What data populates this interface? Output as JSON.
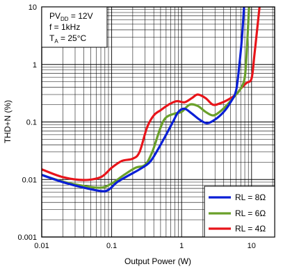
{
  "chart_data": {
    "type": "line",
    "title": "",
    "xlabel": "Output Power (W)",
    "ylabel": "THD+N (%)",
    "x_scale": "log",
    "y_scale": "log",
    "xlim": [
      0.01,
      20
    ],
    "ylim": [
      0.001,
      10
    ],
    "x_ticks": [
      "0.01",
      "0.1",
      "1",
      "10"
    ],
    "y_ticks": [
      "0.001",
      "0.01",
      "0.1",
      "1",
      "10"
    ],
    "grid": true,
    "legend_position": "bottom-right",
    "annotations": {
      "line1_main": "PV",
      "line1_sub": "DD",
      "line1_rest": " = 12V",
      "line2": "f = 1kHz",
      "line3_main": "T",
      "line3_sub": "A",
      "line3_rest": " = 25°C"
    },
    "series": [
      {
        "name": "RL = 8Ω",
        "color": "#0a1fd6",
        "points": [
          [
            0.01,
            0.012
          ],
          [
            0.02,
            0.009
          ],
          [
            0.04,
            0.0072
          ],
          [
            0.07,
            0.0063
          ],
          [
            0.09,
            0.0066
          ],
          [
            0.12,
            0.009
          ],
          [
            0.18,
            0.012
          ],
          [
            0.25,
            0.015
          ],
          [
            0.35,
            0.02
          ],
          [
            0.45,
            0.032
          ],
          [
            0.6,
            0.06
          ],
          [
            0.75,
            0.1
          ],
          [
            0.9,
            0.15
          ],
          [
            1.1,
            0.17
          ],
          [
            1.4,
            0.14
          ],
          [
            1.8,
            0.11
          ],
          [
            2.3,
            0.095
          ],
          [
            3,
            0.11
          ],
          [
            4,
            0.15
          ],
          [
            5,
            0.22
          ],
          [
            6,
            0.35
          ],
          [
            6.7,
            1
          ],
          [
            7.3,
            3
          ],
          [
            7.8,
            10
          ]
        ]
      },
      {
        "name": "RL = 6Ω",
        "color": "#6aa02a",
        "points": [
          [
            0.01,
            0.012
          ],
          [
            0.02,
            0.0092
          ],
          [
            0.04,
            0.0077
          ],
          [
            0.07,
            0.0072
          ],
          [
            0.1,
            0.0085
          ],
          [
            0.15,
            0.012
          ],
          [
            0.22,
            0.016
          ],
          [
            0.3,
            0.018
          ],
          [
            0.38,
            0.03
          ],
          [
            0.5,
            0.08
          ],
          [
            0.6,
            0.12
          ],
          [
            0.8,
            0.14
          ],
          [
            1,
            0.15
          ],
          [
            1.3,
            0.2
          ],
          [
            1.7,
            0.19
          ],
          [
            2.2,
            0.15
          ],
          [
            2.8,
            0.13
          ],
          [
            3.5,
            0.15
          ],
          [
            4.5,
            0.2
          ],
          [
            6,
            0.3
          ],
          [
            7,
            0.38
          ],
          [
            8,
            0.6
          ],
          [
            8.6,
            2
          ],
          [
            9.2,
            10
          ]
        ]
      },
      {
        "name": "RL = 4Ω",
        "color": "#e8141a",
        "points": [
          [
            0.01,
            0.015
          ],
          [
            0.02,
            0.011
          ],
          [
            0.04,
            0.0098
          ],
          [
            0.07,
            0.011
          ],
          [
            0.1,
            0.016
          ],
          [
            0.14,
            0.021
          ],
          [
            0.2,
            0.023
          ],
          [
            0.25,
            0.03
          ],
          [
            0.32,
            0.08
          ],
          [
            0.4,
            0.13
          ],
          [
            0.5,
            0.16
          ],
          [
            0.65,
            0.2
          ],
          [
            0.85,
            0.23
          ],
          [
            1.1,
            0.22
          ],
          [
            1.4,
            0.26
          ],
          [
            1.7,
            0.3
          ],
          [
            2.2,
            0.26
          ],
          [
            2.8,
            0.2
          ],
          [
            3.5,
            0.21
          ],
          [
            4.5,
            0.24
          ],
          [
            6,
            0.3
          ],
          [
            7,
            0.38
          ],
          [
            8.5,
            0.48
          ],
          [
            10,
            0.57
          ],
          [
            11,
            1.5
          ],
          [
            12,
            4
          ],
          [
            13,
            10
          ]
        ]
      }
    ]
  }
}
